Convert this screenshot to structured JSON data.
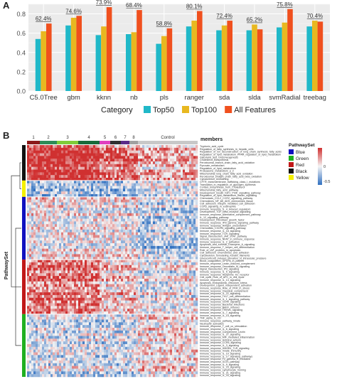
{
  "panels": {
    "a": "A",
    "b": "B"
  },
  "chart_data": [
    {
      "type": "bar",
      "categories": [
        "C5.0Tree",
        "gbm",
        "kknn",
        "nb",
        "pls",
        "ranger",
        "sda",
        "slda",
        "svmRadial",
        "treebag"
      ],
      "series": [
        {
          "name": "Top50",
          "color": "#20B8C8",
          "values": [
            0.54,
            0.68,
            0.58,
            0.59,
            0.49,
            0.67,
            0.63,
            0.63,
            0.66,
            0.67
          ]
        },
        {
          "name": "Top100",
          "color": "#E8B820",
          "values": [
            0.62,
            0.76,
            0.67,
            0.61,
            0.57,
            0.73,
            0.68,
            0.69,
            0.71,
            0.73
          ]
        },
        {
          "name": "All Features",
          "color": "#F0501E",
          "values": [
            0.7,
            0.78,
            0.87,
            0.84,
            0.65,
            0.83,
            0.73,
            0.64,
            0.85,
            0.72
          ]
        }
      ],
      "bar_labels": [
        "62.4%",
        "74.6%",
        "73.9%",
        "68.4%",
        "58.8%",
        "80.1%",
        "72.4%",
        "65.2%",
        "75.8%",
        "70.4%"
      ],
      "ylim": [
        0,
        0.9
      ],
      "yticks": [
        "0.0",
        "0.2",
        "0.4",
        "0.6",
        "0.8"
      ],
      "legend_title": "Category",
      "legend_position": "bottom",
      "grid": true
    },
    {
      "type": "heatmap",
      "column_group_labels": [
        "1",
        "2",
        "3",
        "4",
        "5",
        "6",
        "7",
        "8",
        "Control"
      ],
      "column_group_colors": [
        "#8B1A1A",
        "#2E8B57",
        "#7FCC3A",
        "#1A6B3A",
        "#E040C0",
        "#303030",
        "#5B2A8A",
        "#A0A0A0",
        "#C8C8C8"
      ],
      "annotation_title": "members",
      "row_axis_label": "PathwaySet",
      "row_groups": [
        {
          "name": "Black",
          "color": "#111111",
          "rows": 13,
          "bias": 0.55
        },
        {
          "name": "Yellow",
          "color": "#F4F000",
          "rows": 6,
          "bias": -0.45
        },
        {
          "name": "Blue",
          "color": "#1010C0",
          "rows": 23,
          "bias": 0.05
        },
        {
          "name": "Red",
          "color": "#C01818",
          "rows": 20,
          "bias": 0.25
        },
        {
          "name": "Green",
          "color": "#20B020",
          "rows": 23,
          "bias": -0.15
        }
      ],
      "legend": {
        "title": "PathwaySet",
        "items": [
          {
            "name": "Blue",
            "color": "#1010C0"
          },
          {
            "name": "Green",
            "color": "#20B020"
          },
          {
            "name": "Red",
            "color": "#C01818"
          },
          {
            "name": "Black",
            "color": "#111111"
          },
          {
            "name": "Yellow",
            "color": "#F4F000"
          }
        ],
        "scale_ticks": [
          "0",
          "-0.5"
        ],
        "scale_colors": [
          "#D03030",
          "#F5F5F5",
          "#3070C0"
        ]
      },
      "row_labels": [
        "Tryptonic_acid_cycle",
        "Regulation_of_fatty_synthesis_in_hepatic_cells",
        "Regulation_of_ion_deconstruction_of_long_chain_synthesis_fatty_acids",
        "Regulation_of_lipid_metabolism_PPAR_regulation_of_lipid_metabolism",
        "Glycolysis_and_Gluconeogenesis",
        "Cholesterol_Biosynthesis",
        "Peroxisomal_branch_chain_fatty_acid_oxidation",
        "Pyruvate_metabolism",
        "Regulation_of_lipid_metabolism",
        "Proteasome_metabolism_p_2",
        "Mitochondrial_long_chain_fatty_acid_oxidation",
        "Peroxisomal_straight_chain_fatty_acid_beta_oxidation",
        "Cytoskeleton_remodeling",
        "CFTR_transmembrane_trafficking_class_I_mutations",
        "Translation_in_regulation_of_glycogen_synthesis",
        "Cortisol_biosynthesis_from_Cholesterol",
        "Mitochondrial_fatty_acid_pathway",
        "Development_insulin_IGF1_PI3K_signalling_pathway",
        "Regulation_of_lipid_metabolism_insulin_signalling",
        "Chemotaxis_CCL2_CCR2_signalling_pathway",
        "Chemokines_NF_kB_ADS_chemokines_tissue",
        "Cell_adhesion_Integrin_mediated_cell_adhesion",
        "CCR3_signaling_in_eosinophils",
        "Immune_response_IL_4_induced_regulators",
        "Development_TGF_beta_receptor_signalling",
        "Immune_response_Alternative_complement_pathway",
        "IL_12_signaling_pathway",
        "Development_Fibroblast_growth_factor",
        "Immune_response_IFN_gamma_signaling_pathway",
        "Immune_response_Antigen_presentation",
        "Chemotaxis_CXCR4_signaling_pathway",
        "Immune_response_IL_18_signaling",
        "Immune_response_TCR_signaling",
        "Signal_transduction_JAK_STAT_pathway",
        "Immune_response_NFAT_in_immune_response",
        "Immune_response_IL_2_activation",
        "Apoptosis_and_survival_Granzyme_A_signaling",
        "Immune_response_T_helper_cell_differentiation",
        "Role_of_IAP_proteins_in_apoptosis",
        "Cell_adhesion_Chemokines_and_adhesion",
        "Cytoskeleton_remodeling_Keratin_filaments",
        "Glucocorticoid_induced_elevation_of_intraocular_pressure",
        "Blood_coagulation_GPCRs_in_platelet",
        "Immune_response_Lectin_induced_complement",
        "Immune_response_Oncostatin_M_signaling",
        "Signal_transduction_IP3_signaling",
        "Immune_response_IL_5_signalling",
        "Immune_response_Histamine_H1_receptor",
        "Cell_cycle_Role_of_APC_in_cell_cycle",
        "Immune_response_IL_13_signaling",
        "Apoptosis_Endoplasmic_reticulum_stress",
        "Development_Ligand_independent_activation",
        "Immune_response_Role_of_PKR_in_stress",
        "Immune_response_Classical_complement",
        "Immune_response_IL_22_signaling",
        "Immune_response_Th17_cell_differentiation",
        "Immune_response_IL_1_signaling_pathway",
        "Immune_response_CD40_signaling",
        "Immune_response_Bacterial_infections",
        "Immune_response_BAFF_induced",
        "Immune_response_TREM1_signaling",
        "Immune_response_IL_7_signaling",
        "Immune_response_IL_15_signaling",
        "TNF_alpha_in_CD",
        "Immune_response_pathway_innate",
        "Neutrophil_activation",
        "Immune_response_T_cell_co_stimulation",
        "Immune_response_IL_6_signaling",
        "Immune_response_Complement_Lectin",
        "Immune_response_IL_27_signaling",
        "Immune_response_MIF_mediated_inflammation",
        "Immune_response_Antiviral_actions",
        "Immune_response_CCR5_signaling",
        "Immune_response_IL_3_signaling",
        "Immune_response_HMGB1_TLR_signaling",
        "Immune_response_Innate_immunity",
        "Immune_response_IL_10_signaling",
        "Immune_response_IL_17_signaling_pathways",
        "Immune_response_Fc_gamma_R_mediated",
        "Immune_response_ICOS_pathway",
        "Immune_response_IL_9_signaling",
        "Immune_response_IL_23_signaling",
        "Immune_response_Lymphocyte_homing",
        "Immune_response_IL_21_signaling",
        "Immune_response_IL_33_signaling"
      ]
    }
  ]
}
